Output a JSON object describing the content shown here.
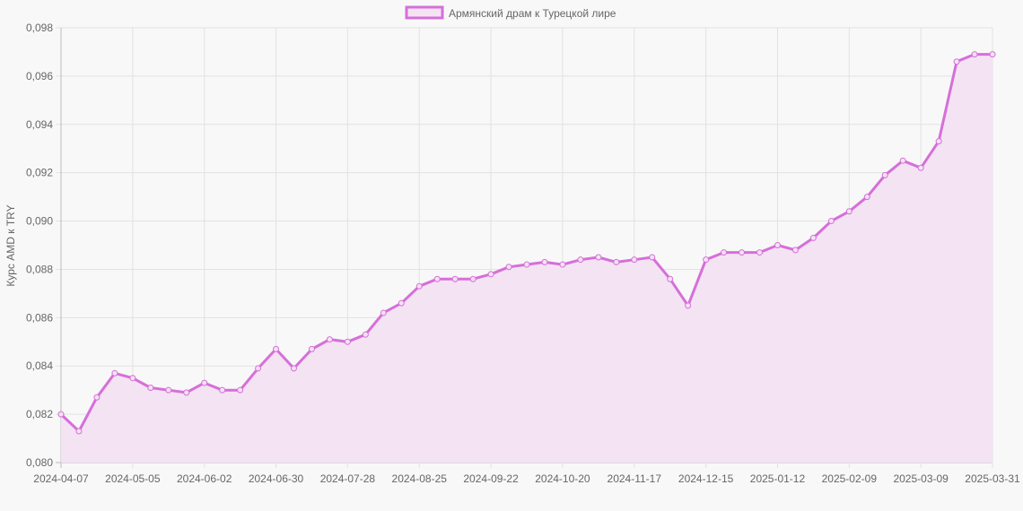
{
  "chart_data": {
    "type": "line",
    "title": "",
    "xlabel": "",
    "ylabel": "Курс AMD к TRY",
    "ylim": [
      0.08,
      0.098
    ],
    "ytick_step": 0.002,
    "grid": true,
    "legend_position": "top",
    "categories": [
      "2024-04-07",
      "2024-04-14",
      "2024-04-21",
      "2024-04-28",
      "2024-05-05",
      "2024-05-12",
      "2024-05-19",
      "2024-05-26",
      "2024-06-02",
      "2024-06-09",
      "2024-06-16",
      "2024-06-23",
      "2024-06-30",
      "2024-07-07",
      "2024-07-14",
      "2024-07-21",
      "2024-07-28",
      "2024-08-04",
      "2024-08-11",
      "2024-08-18",
      "2024-08-25",
      "2024-09-01",
      "2024-09-08",
      "2024-09-15",
      "2024-09-22",
      "2024-09-29",
      "2024-10-06",
      "2024-10-13",
      "2024-10-20",
      "2024-10-27",
      "2024-11-03",
      "2024-11-10",
      "2024-11-17",
      "2024-11-24",
      "2024-12-01",
      "2024-12-08",
      "2024-12-15",
      "2024-12-22",
      "2024-12-29",
      "2025-01-05",
      "2025-01-12",
      "2025-01-19",
      "2025-01-26",
      "2025-02-02",
      "2025-02-09",
      "2025-02-16",
      "2025-02-23",
      "2025-03-02",
      "2025-03-09",
      "2025-03-16",
      "2025-03-23",
      "2025-03-30",
      "2025-03-31"
    ],
    "xtick_labels": [
      "2024-04-07",
      "2024-05-05",
      "2024-06-02",
      "2024-06-30",
      "2024-07-28",
      "2024-08-25",
      "2024-09-22",
      "2024-10-20",
      "2024-11-17",
      "2024-12-15",
      "2025-01-12",
      "2025-02-09",
      "2025-03-09",
      "2025-03-31"
    ],
    "series": [
      {
        "name": "Армянский драм к Турецкой лире",
        "color": "#d66fd9",
        "fill": "#f3e3f3",
        "values": [
          0.082,
          0.0813,
          0.0827,
          0.0837,
          0.0835,
          0.0831,
          0.083,
          0.0829,
          0.0833,
          0.083,
          0.083,
          0.0839,
          0.0847,
          0.0839,
          0.0847,
          0.0851,
          0.085,
          0.0853,
          0.0862,
          0.0866,
          0.0873,
          0.0876,
          0.0876,
          0.0876,
          0.0878,
          0.0881,
          0.0882,
          0.0883,
          0.0882,
          0.0884,
          0.0885,
          0.0883,
          0.0884,
          0.0885,
          0.0876,
          0.0865,
          0.0884,
          0.0887,
          0.0887,
          0.0887,
          0.089,
          0.0888,
          0.0893,
          0.09,
          0.0904,
          0.091,
          0.0919,
          0.0925,
          0.0922,
          0.0933,
          0.0966,
          0.0969,
          0.0969
        ]
      }
    ]
  }
}
